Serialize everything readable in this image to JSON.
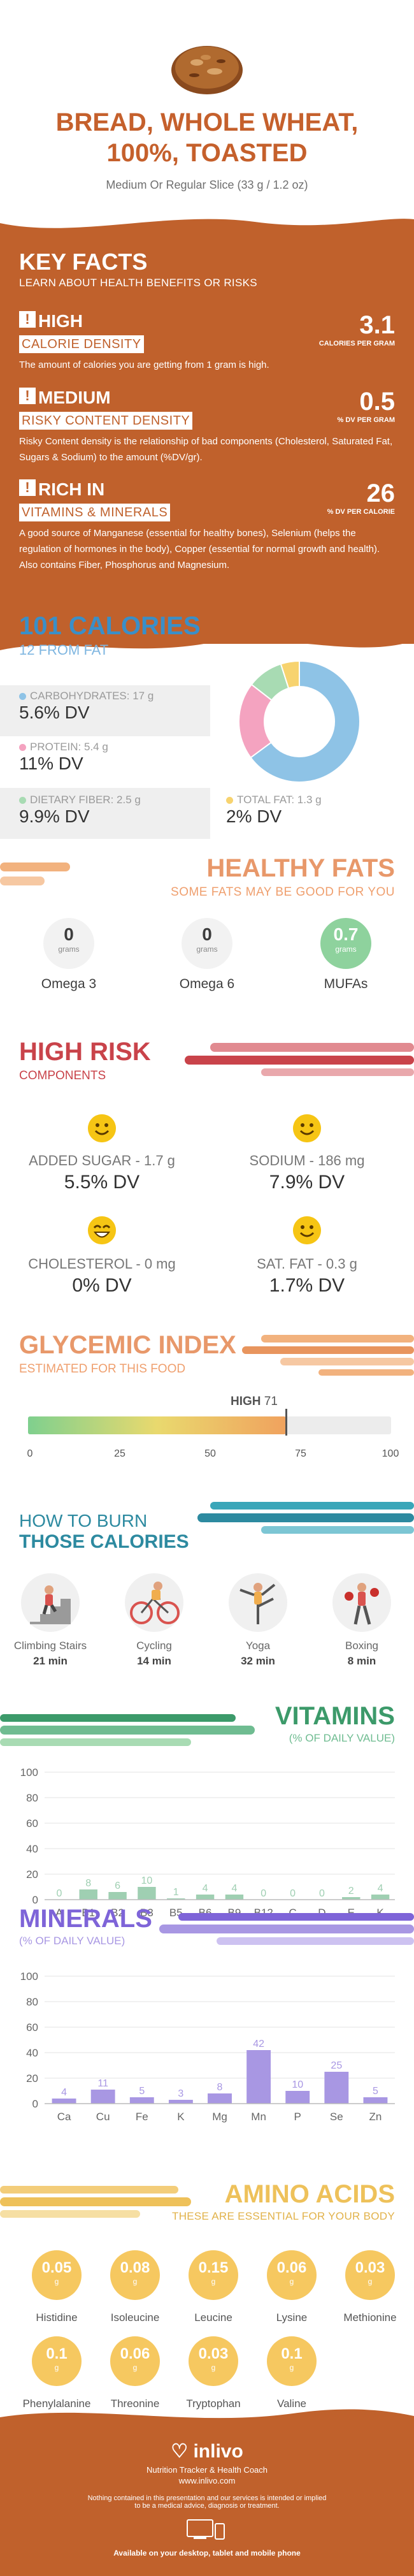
{
  "header": {
    "title_line1": "BREAD, WHOLE WHEAT,",
    "title_line2": "100%, TOASTED",
    "subtitle": "Medium Or Regular Slice (33 g / 1.2 oz)"
  },
  "key_facts": {
    "title": "KEY FACTS",
    "subtitle": "LEARN ABOUT HEALTH BENEFITS OR RISKS",
    "items": [
      {
        "rating": "HIGH",
        "metric": "CALORIE DENSITY",
        "value": "3.1",
        "unit": "CALORIES PER GRAM",
        "description": "The amount of calories you are getting from 1 gram is high."
      },
      {
        "rating": "MEDIUM",
        "metric": "RISKY CONTENT DENSITY",
        "value": "0.5",
        "unit": "% DV PER GRAM",
        "description": "Risky Content density is the relationship of bad components (Cholesterol, Saturated Fat, Sugars & Sodium) to the amount (%DV/gr)."
      },
      {
        "rating": "RICH IN",
        "metric": "VITAMINS & MINERALS",
        "value": "26",
        "unit": "% DV PER CALORIE",
        "description": "A good source of Manganese (essential for healthy bones), Selenium (helps the regulation of hormones in the body), Copper (essential for normal growth and health). Also contains Fiber, Phosphorus and Magnesium."
      }
    ]
  },
  "calories": {
    "title": "101 CALORIES",
    "subtitle": "12 FROM FAT",
    "nutrients": [
      {
        "label": "CARBOHYDRATES: 17 g",
        "dv": "5.6% DV",
        "color": "#8ec3e6"
      },
      {
        "label": "PROTEIN: 5.4 g",
        "dv": "11% DV",
        "color": "#f4a3c0"
      },
      {
        "label": "DIETARY FIBER: 2.5 g",
        "dv": "9.9% DV",
        "color": "#a8dbb3"
      },
      {
        "label": "TOTAL FAT: 1.3 g",
        "dv": "2% DV",
        "color": "#f7d36f"
      }
    ],
    "donut": [
      {
        "name": "Carbohydrates",
        "value": 17,
        "color": "#8ec3e6"
      },
      {
        "name": "Protein",
        "value": 5.4,
        "color": "#f4a3c0"
      },
      {
        "name": "Fiber",
        "value": 2.5,
        "color": "#a8dbb3"
      },
      {
        "name": "Fat",
        "value": 1.3,
        "color": "#f7d36f"
      }
    ]
  },
  "healthy_fats": {
    "title": "HEALTHY FATS",
    "subtitle": "SOME FATS MAY BE GOOD FOR YOU",
    "items": [
      {
        "value": "0",
        "unit": "grams",
        "name": "Omega 3"
      },
      {
        "value": "0",
        "unit": "grams",
        "name": "Omega 6"
      },
      {
        "value": "0.7",
        "unit": "grams",
        "name": "MUFAs"
      }
    ]
  },
  "high_risk": {
    "title": "HIGH RISK",
    "subtitle": "COMPONENTS",
    "items": [
      {
        "label": "ADDED SUGAR - 1.7 g",
        "dv": "5.5% DV"
      },
      {
        "label": "SODIUM - 186 mg",
        "dv": "7.9% DV"
      },
      {
        "label": "CHOLESTEROL - 0 mg",
        "dv": "0% DV"
      },
      {
        "label": "SAT. FAT - 0.3 g",
        "dv": "1.7% DV"
      }
    ]
  },
  "glycemic": {
    "title": "GLYCEMIC INDEX",
    "subtitle": "ESTIMATED FOR THIS FOOD",
    "level": "HIGH",
    "value": 71,
    "ticks": [
      "0",
      "25",
      "50",
      "75",
      "100"
    ]
  },
  "burn": {
    "title_line1": "HOW TO BURN",
    "title_line2": "THOSE CALORIES",
    "items": [
      {
        "activity": "Climbing Stairs",
        "time": "21 min"
      },
      {
        "activity": "Cycling",
        "time": "14 min"
      },
      {
        "activity": "Yoga",
        "time": "32 min"
      },
      {
        "activity": "Boxing",
        "time": "8 min"
      }
    ]
  },
  "vitamins": {
    "title": "VITAMINS",
    "subtitle": "(% OF DAILY VALUE)"
  },
  "minerals": {
    "title": "MINERALS",
    "subtitle": "(% OF DAILY VALUE)"
  },
  "chart_data": [
    {
      "type": "bar",
      "title": "VITAMINS",
      "subtitle": "(% OF DAILY VALUE)",
      "categories": [
        "A",
        "B1",
        "B2",
        "B3",
        "B5",
        "B6",
        "B9",
        "B12",
        "C",
        "D",
        "E",
        "K"
      ],
      "values": [
        0,
        8,
        6,
        10,
        1,
        4,
        4,
        0,
        0,
        0,
        2,
        4
      ],
      "ylim": [
        0,
        100
      ],
      "yticks": [
        "0",
        "20",
        "40",
        "60",
        "80",
        "100"
      ],
      "grid": true,
      "color": "#9fcfb2"
    },
    {
      "type": "bar",
      "title": "MINERALS",
      "subtitle": "(% OF DAILY VALUE)",
      "categories": [
        "Ca",
        "Cu",
        "Fe",
        "K",
        "Mg",
        "Mn",
        "P",
        "Se",
        "Zn"
      ],
      "values": [
        4,
        11,
        5,
        3,
        8,
        42,
        10,
        25,
        5
      ],
      "ylim": [
        0,
        100
      ],
      "yticks": [
        "0",
        "20",
        "40",
        "60",
        "80",
        "100"
      ],
      "grid": true,
      "color": "#a897e3"
    }
  ],
  "amino": {
    "title": "AMINO ACIDS",
    "subtitle": "THESE ARE ESSENTIAL FOR YOUR BODY",
    "unit": "g",
    "items": [
      {
        "value": "0.05",
        "name": "Histidine"
      },
      {
        "value": "0.08",
        "name": "Isoleucine"
      },
      {
        "value": "0.15",
        "name": "Leucine"
      },
      {
        "value": "0.06",
        "name": "Lysine"
      },
      {
        "value": "0.03",
        "name": "Methionine"
      },
      {
        "value": "0.1",
        "name": "Phenylalanine"
      },
      {
        "value": "0.06",
        "name": "Threonine"
      },
      {
        "value": "0.03",
        "name": "Tryptophan"
      },
      {
        "value": "0.1",
        "name": "Valine"
      }
    ]
  },
  "footer": {
    "brand": "inlivo",
    "tagline": "Nutrition Tracker & Health Coach",
    "url": "www.inlivo.com",
    "disclaimer_line1": "Nothing contained in this presentation and our services is intended or implied",
    "disclaimer_line2": "to be a medical advice, diagnosis or treatment.",
    "available": "Available on your desktop, tablet and mobile phone"
  }
}
